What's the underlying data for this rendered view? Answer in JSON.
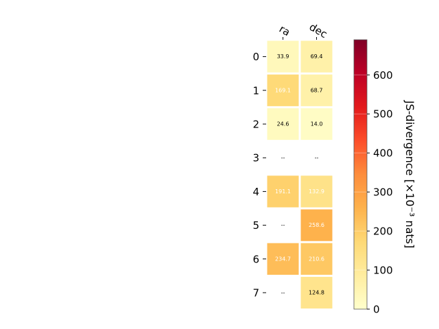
{
  "chart_data": {
    "type": "heatmap",
    "columns": [
      "ra",
      "dec"
    ],
    "rows": [
      "0",
      "1",
      "2",
      "3",
      "4",
      "5",
      "6",
      "7"
    ],
    "values": [
      [
        33.9,
        69.4
      ],
      [
        169.1,
        68.7
      ],
      [
        24.6,
        14.0
      ],
      [
        null,
        null
      ],
      [
        191.1,
        132.9
      ],
      [
        null,
        258.6
      ],
      [
        234.7,
        210.6
      ],
      [
        null,
        124.8
      ]
    ],
    "cell_labels": [
      [
        "33.9",
        "69.4"
      ],
      [
        "169.1",
        "68.7"
      ],
      [
        "24.6",
        "14.0"
      ],
      [
        "--",
        "--"
      ],
      [
        "191.1",
        "132.9"
      ],
      [
        "--",
        "258.6"
      ],
      [
        "234.7",
        "210.6"
      ],
      [
        "--",
        "124.8"
      ]
    ],
    "missing_label": "--",
    "colorbar": {
      "label": "JS-divergence [×10⁻³ nats]",
      "ticks": [
        "0",
        "100",
        "200",
        "300",
        "400",
        "500",
        "600"
      ],
      "tick_values": [
        0,
        100,
        200,
        300,
        400,
        500,
        600
      ],
      "range": [
        0,
        690
      ],
      "colormap": "YlOrRd"
    },
    "grid": false
  }
}
